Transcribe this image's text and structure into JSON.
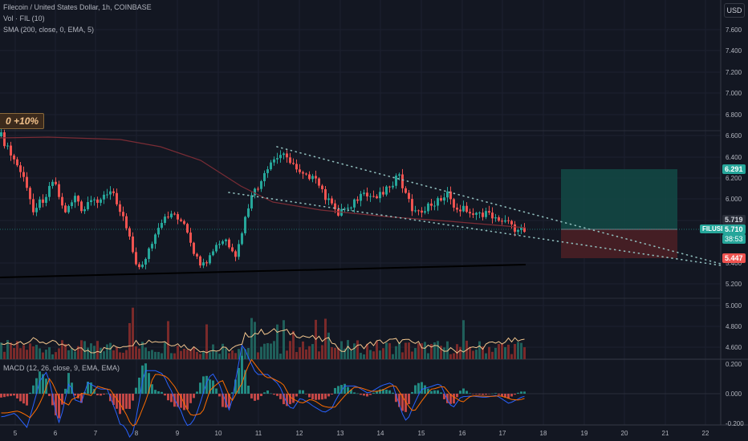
{
  "header": {
    "title": "Filecoin / United States Dollar, 1h, COINBASE",
    "vol_label": "Vol · FIL (10)",
    "sma_label": "SMA (200, close, 0, EMA, 5)",
    "macd_label": "MACD (12, 26, close, 9, EMA, EMA)"
  },
  "promo_label": "0 +10%",
  "currency_button": "USD",
  "price_axis": {
    "labels": [
      "7.600",
      "7.400",
      "7.200",
      "7.000",
      "6.800",
      "6.600",
      "6.400",
      "6.200",
      "6.000",
      "5.800",
      "5.400",
      "5.200",
      "5.000",
      "4.800",
      "4.600"
    ]
  },
  "macd_axis": {
    "labels": [
      "0.200",
      "0.000",
      "-0.200"
    ]
  },
  "time_axis": {
    "labels": [
      "5",
      "6",
      "7",
      "8",
      "9",
      "10",
      "11",
      "12",
      "13",
      "14",
      "15",
      "16",
      "17",
      "18",
      "19",
      "20",
      "21",
      "22"
    ]
  },
  "badges": {
    "target": "6.291",
    "entry": "5.719",
    "symbol": "FILUSD",
    "last_price": "5.710",
    "countdown": "38:53",
    "stop": "5.447"
  },
  "colors": {
    "up": "#26a69a",
    "down": "#ef5350",
    "background": "#131722",
    "target_zone": "#134a45",
    "stop_zone": "#4a1f25"
  },
  "chart_data": {
    "type": "candlestick",
    "symbol": "FILUSD",
    "interval": "1h",
    "exchange": "COINBASE",
    "x_range": [
      "5",
      "22"
    ],
    "y_range": [
      4.5,
      7.7
    ],
    "sma_200_range": [
      5.3,
      6.56
    ],
    "position": {
      "target": 6.291,
      "entry": 5.719,
      "stop": 5.447
    },
    "last_price": 5.71
  }
}
